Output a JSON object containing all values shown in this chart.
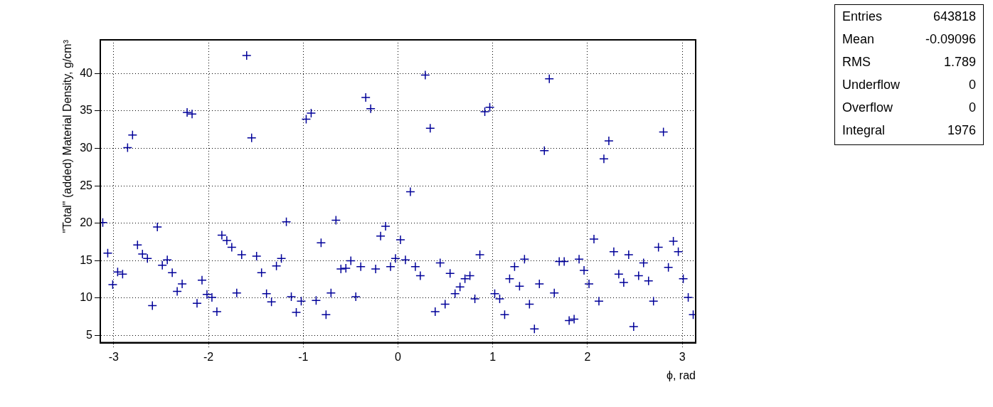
{
  "chart_data": {
    "type": "scatter",
    "xlabel": "ϕ, rad",
    "ylabel": "\"Total\" (added) Material Density, g/cm³",
    "x": [
      -3.1154,
      -3.063,
      -3.0107,
      -2.9583,
      -2.906,
      -2.8536,
      -2.8013,
      -2.7489,
      -2.6965,
      -2.6442,
      -2.5918,
      -2.5395,
      -2.4871,
      -2.4347,
      -2.3824,
      -2.33,
      -2.2777,
      -2.2253,
      -2.173,
      -2.1206,
      -2.0682,
      -2.0159,
      -1.9635,
      -1.9112,
      -1.8588,
      -1.8064,
      -1.7541,
      -1.7017,
      -1.6494,
      -1.597,
      -1.5446,
      -1.4923,
      -1.4399,
      -1.3876,
      -1.3352,
      -1.2829,
      -1.2305,
      -1.1781,
      -1.1258,
      -1.0734,
      -1.0211,
      -0.9687,
      -0.9163,
      -0.864,
      -0.8116,
      -0.7593,
      -0.7069,
      -0.6545,
      -0.6022,
      -0.5498,
      -0.4975,
      -0.4451,
      -0.3927,
      -0.3403,
      -0.288,
      -0.2356,
      -0.1833,
      -0.1309,
      -0.0785,
      -0.0262,
      0.0262,
      0.0785,
      0.1309,
      0.1833,
      0.2356,
      0.288,
      0.3403,
      0.3927,
      0.4451,
      0.4975,
      0.5498,
      0.6022,
      0.6545,
      0.7069,
      0.7593,
      0.8116,
      0.864,
      0.9163,
      0.9687,
      1.0211,
      1.0734,
      1.1258,
      1.1781,
      1.2305,
      1.2829,
      1.3352,
      1.3876,
      1.4399,
      1.4923,
      1.5446,
      1.597,
      1.6494,
      1.7017,
      1.7541,
      1.8064,
      1.8588,
      1.9112,
      1.9635,
      2.0159,
      2.0682,
      2.1206,
      2.173,
      2.2253,
      2.2777,
      2.33,
      2.3824,
      2.4347,
      2.4871,
      2.5395,
      2.5918,
      2.6442,
      2.6965,
      2.7489,
      2.8013,
      2.8536,
      2.906,
      2.9583,
      3.0107,
      3.063,
      3.1154
    ],
    "series": [
      {
        "color": "#000099",
        "values": [
          20.1,
          16.0,
          11.8,
          13.5,
          13.2,
          30.1,
          31.8,
          17.1,
          15.9,
          15.3,
          9.0,
          19.5,
          14.4,
          15.1,
          13.4,
          10.9,
          11.9,
          34.8,
          34.6,
          9.3,
          12.4,
          10.5,
          10.1,
          8.2,
          18.4,
          17.7,
          16.8,
          10.7,
          15.8,
          42.4,
          31.4,
          15.6,
          13.4,
          10.6,
          9.5,
          14.3,
          15.3,
          20.2,
          10.2,
          8.1,
          9.6,
          33.9,
          34.7,
          9.7,
          17.4,
          7.8,
          10.7,
          20.4,
          13.9,
          14.0,
          15.0,
          10.2,
          14.2,
          36.8,
          35.3,
          13.9,
          18.3,
          19.6,
          14.2,
          15.3,
          17.8,
          15.1,
          24.2,
          14.2,
          13.0,
          39.8,
          32.7,
          8.2,
          14.7,
          9.2,
          13.3,
          10.6,
          11.5,
          12.6,
          13.0,
          9.9,
          15.8,
          34.9,
          35.5,
          10.6,
          9.9,
          7.8,
          12.6,
          14.2,
          11.6,
          15.2,
          9.2,
          5.9,
          11.9,
          29.7,
          39.3,
          10.7,
          14.9,
          14.9,
          7.0,
          7.2,
          15.2,
          13.7,
          11.9,
          17.9,
          9.6,
          28.6,
          31.0,
          16.2,
          13.2,
          12.1,
          15.8,
          6.2,
          13.0,
          14.7,
          12.3,
          9.6,
          16.8,
          32.2,
          14.1,
          17.6,
          16.2,
          12.6,
          10.1,
          7.8
        ]
      }
    ],
    "xlim": [
      -3.1416,
      3.1416
    ],
    "xticks": [
      -3,
      -2,
      -1,
      0,
      1,
      2,
      3
    ],
    "ylim": [
      4.05,
      44.5
    ],
    "yticks": [
      5,
      10,
      15,
      20,
      25,
      30,
      35,
      40
    ],
    "grid": true,
    "legend": false,
    "marker": "cross",
    "annotations": [
      "Entries 643818",
      "Mean -0.09096",
      "RMS 1.789",
      "Underflow 0",
      "Overflow 0",
      "Integral 1976"
    ]
  }
}
